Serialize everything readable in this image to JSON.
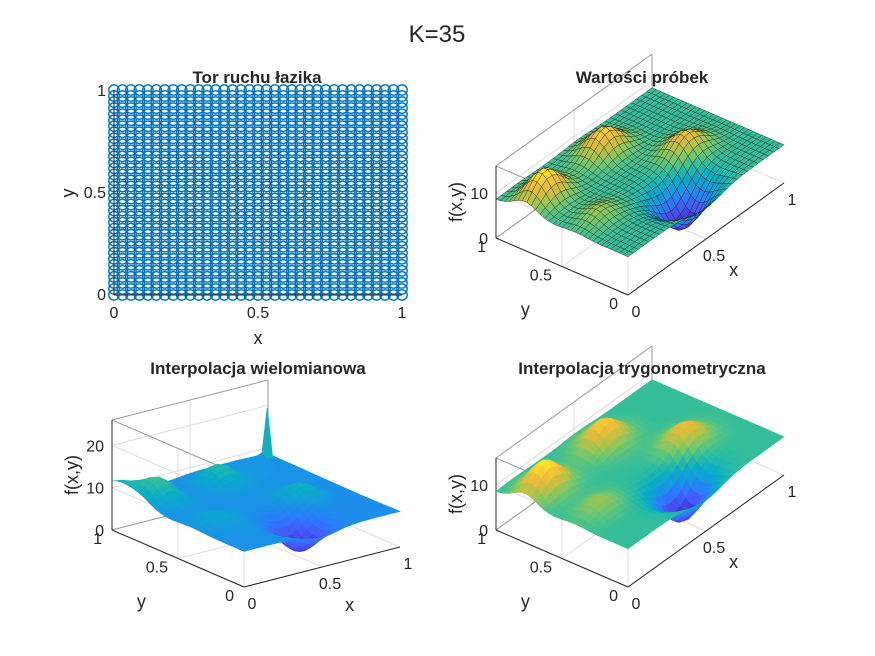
{
  "figure": {
    "title": "K=35"
  },
  "colors": {
    "marker": "#0072BD",
    "axis": "#262626",
    "grid": "#dcdcdc",
    "box": "#9a9a9a"
  },
  "chart_data": [
    {
      "type": "scatter",
      "title": "Tor ruchu łazika",
      "xlabel": "x",
      "ylabel": "y",
      "xlim": [
        0,
        1
      ],
      "ylim": [
        0,
        1
      ],
      "xticks": [
        "0",
        "0.5",
        "1"
      ],
      "yticks": [
        "0",
        "0.5",
        "1"
      ],
      "marker": "circle",
      "grid_cols": 35,
      "grid_rows": 35,
      "series": [
        {
          "points": 1225
        }
      ]
    },
    {
      "type": "surface",
      "title": "Wartości próbek",
      "xlabel": "x",
      "ylabel": "y",
      "zlabel": "f(x,y)",
      "xticks": [
        "0",
        "0.5",
        "1"
      ],
      "yticks": [
        "0",
        "0.5",
        "1"
      ],
      "zticks": [
        "0",
        "10"
      ],
      "zlim": [
        0,
        16
      ],
      "style": "faceted",
      "colormap": "parula"
    },
    {
      "type": "surface",
      "title": "Interpolacja wielomianowa",
      "xlabel": "x",
      "ylabel": "y",
      "zlabel": "f(x,y)",
      "xticks": [
        "0",
        "0.5",
        "1"
      ],
      "yticks": [
        "0",
        "0.5",
        "1"
      ],
      "zticks": [
        "0",
        "10",
        "20"
      ],
      "zlim": [
        0,
        26
      ],
      "style": "smooth",
      "colormap": "parula"
    },
    {
      "type": "surface",
      "title": "Interpolacja trygonometryczna",
      "xlabel": "x",
      "ylabel": "y",
      "zlabel": "f(x,y)",
      "xticks": [
        "0",
        "0.5",
        "1"
      ],
      "yticks": [
        "0",
        "0.5",
        "1"
      ],
      "zticks": [
        "0",
        "10"
      ],
      "zlim": [
        0,
        16
      ],
      "style": "smooth",
      "colormap": "parula"
    }
  ]
}
